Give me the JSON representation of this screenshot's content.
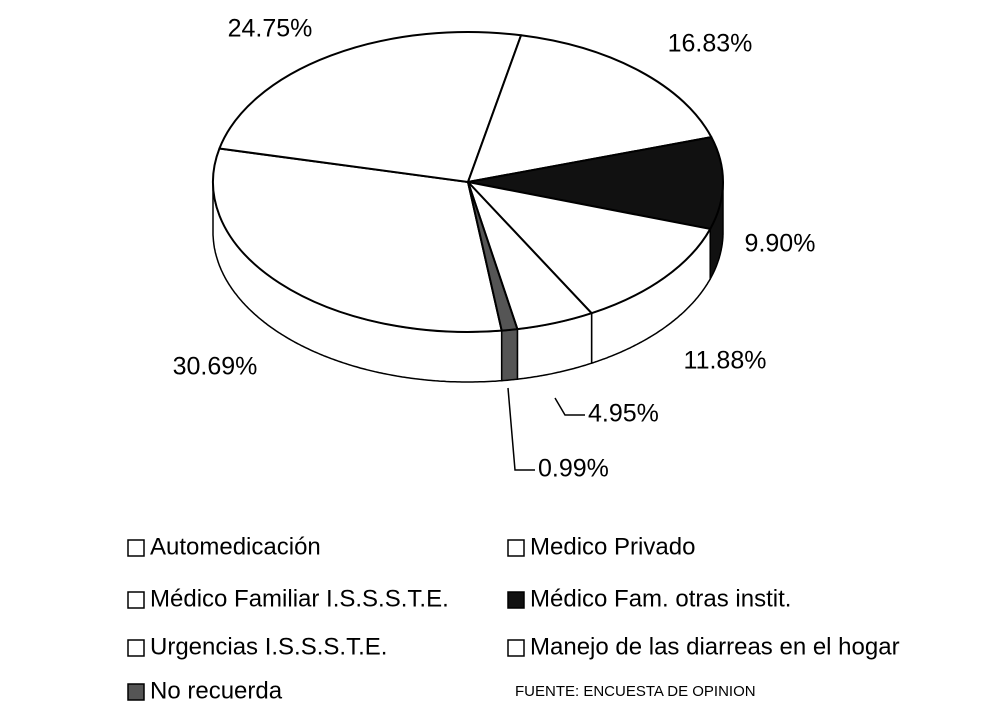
{
  "chart_data": {
    "type": "pie",
    "categories": [
      "Automedicación",
      "Medico Privado",
      "Médico Familiar I.S.S.S.T.E.",
      "Médico Fam. otras instit.",
      "Urgencias I.S.S.S.T.E.",
      "Manejo de las diarreas en el hogar",
      "No recuerda"
    ],
    "values": [
      30.69,
      24.75,
      16.83,
      9.9,
      11.88,
      4.95,
      0.99
    ],
    "value_labels": [
      "30.69%",
      "24.75%",
      "16.83%",
      "9.90%",
      "11.88%",
      "4.95%",
      "0.99%"
    ],
    "colors": [
      "#ffffff",
      "#ffffff",
      "#ffffff",
      "#111111",
      "#ffffff",
      "#ffffff",
      "#555555"
    ],
    "source": "FUENTE: ENCUESTA DE OPINION"
  }
}
